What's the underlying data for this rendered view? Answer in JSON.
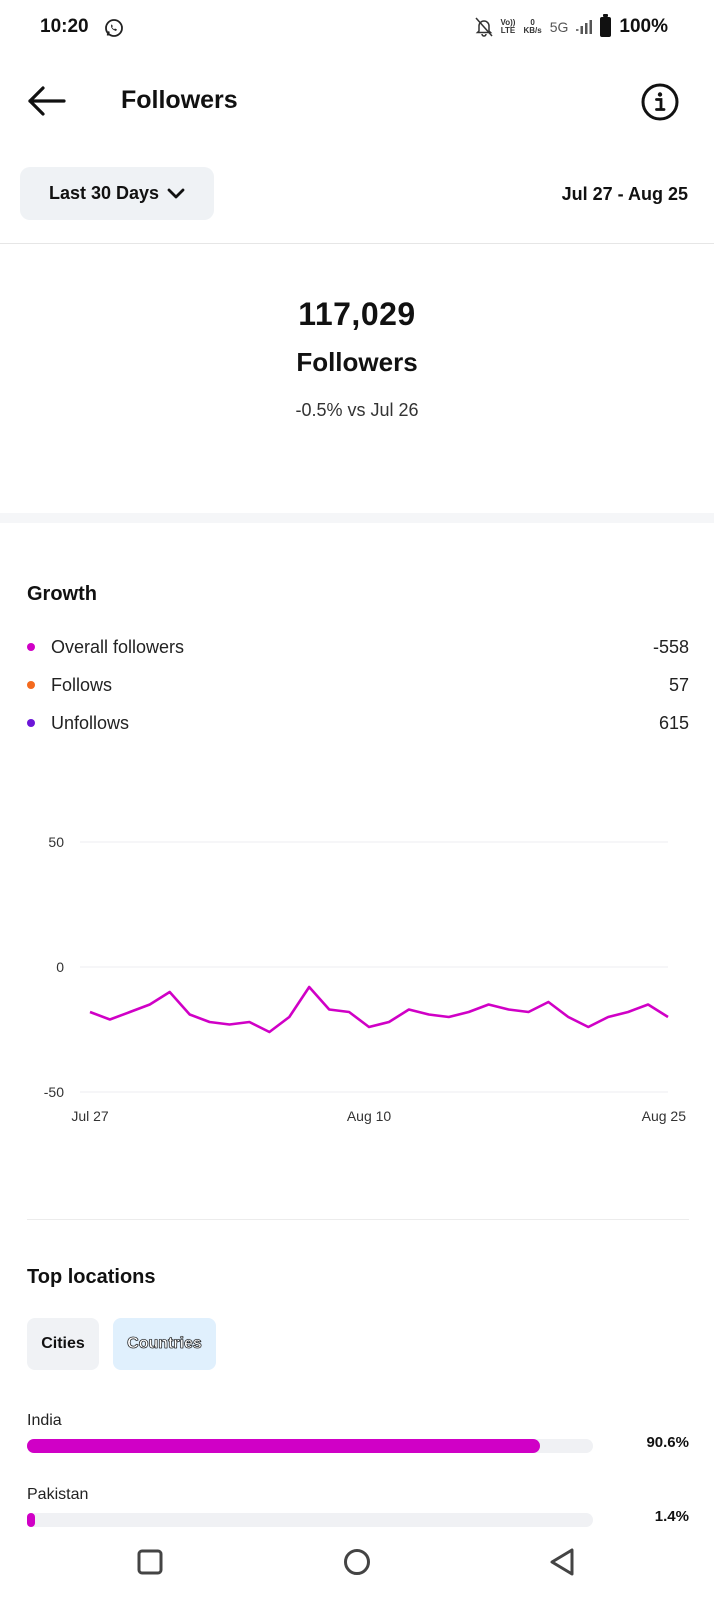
{
  "status_bar": {
    "time": "10:20",
    "volte_top": "Vo))",
    "volte_bottom": "LTE",
    "speed_value": "0",
    "speed_unit": "KB/s",
    "network": "5G",
    "battery": "100%"
  },
  "header": {
    "title": "Followers"
  },
  "filter": {
    "range_label": "Last 30 Days",
    "date_range": "Jul 27 - Aug 25"
  },
  "summary": {
    "count": "117,029",
    "label": "Followers",
    "change": "-0.5% vs Jul 26"
  },
  "growth": {
    "title": "Growth",
    "legend": [
      {
        "label": "Overall followers",
        "value": "-558",
        "color": "#d000c6"
      },
      {
        "label": "Follows",
        "value": "57",
        "color": "#f46a1e"
      },
      {
        "label": "Unfollows",
        "value": "615",
        "color": "#6c16d8"
      }
    ]
  },
  "chart_data": {
    "type": "line",
    "y_ticks": [
      "50",
      "0",
      "-50"
    ],
    "ylim": [
      -50,
      50
    ],
    "x_tick_labels": [
      "Jul 27",
      "Aug 10",
      "Aug 25"
    ],
    "series": [
      {
        "name": "Overall followers",
        "color": "#d000c6",
        "values": [
          -18,
          -21,
          -18,
          -15,
          -10,
          -19,
          -22,
          -23,
          -22,
          -26,
          -20,
          -8,
          -17,
          -18,
          -24,
          -22,
          -17,
          -19,
          -20,
          -18,
          -15,
          -17,
          -18,
          -14,
          -20,
          -24,
          -20,
          -18,
          -15,
          -20
        ]
      }
    ],
    "grid": true
  },
  "locations": {
    "title": "Top locations",
    "tabs": [
      {
        "label": "Cities",
        "active": false
      },
      {
        "label": "Countries",
        "active": true
      }
    ],
    "bar_color": "#d000c6",
    "items": [
      {
        "name": "India",
        "percent_label": "90.6%",
        "fraction": 0.906
      },
      {
        "name": "Pakistan",
        "percent_label": "1.4%",
        "fraction": 0.014
      }
    ]
  },
  "icons": {
    "back": "arrow-left-icon",
    "info": "info-circle-icon",
    "dropdown": "chevron-down-icon",
    "nav_recents": "square-icon",
    "nav_home": "circle-icon",
    "nav_back": "triangle-back-icon"
  }
}
